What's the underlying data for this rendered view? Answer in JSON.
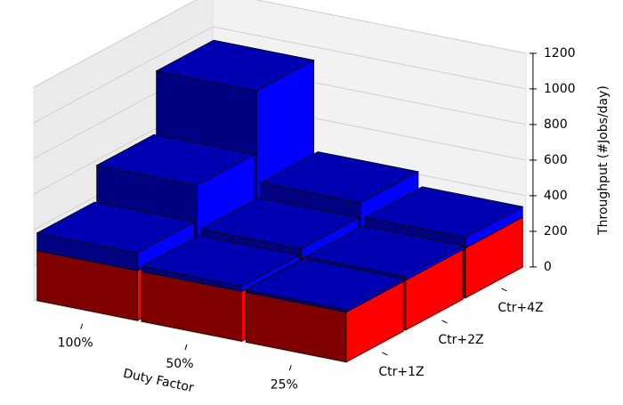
{
  "chart_data": {
    "type": "bar3d",
    "xlabel": "Duty Factor",
    "zlabel": "Throughput (#Jobs/day)",
    "x_categories": [
      "100%",
      "50%",
      "25%"
    ],
    "y_categories": [
      "Ctr+1Z",
      "Ctr+2Z",
      "Ctr+4Z"
    ],
    "series": [
      {
        "color": "#ff0000",
        "values": [
          [
            280,
            280,
            280
          ],
          [
            280,
            280,
            280
          ],
          [
            280,
            280,
            280
          ]
        ]
      },
      {
        "color": "#0000ff",
        "values": [
          [
            100,
            300,
            650
          ],
          [
            30,
            60,
            140
          ],
          [
            15,
            20,
            60
          ]
        ]
      }
    ],
    "zlim": [
      0,
      1200
    ],
    "zticks": [
      0,
      200,
      400,
      600,
      800,
      1000,
      1200
    ],
    "grid": true
  }
}
